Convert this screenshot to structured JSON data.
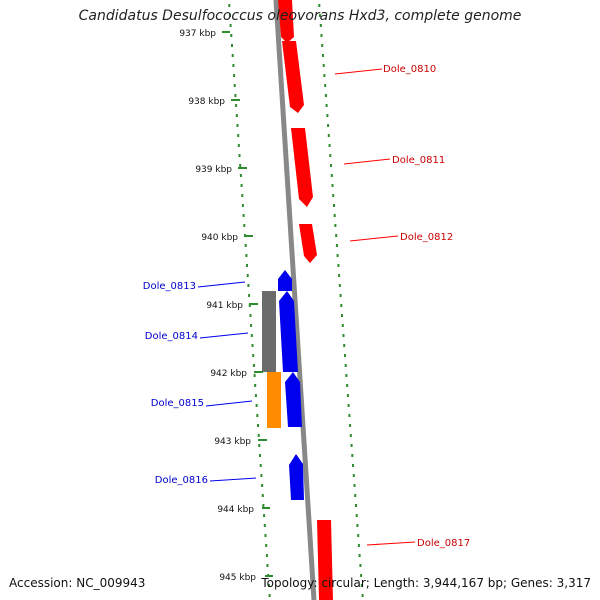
{
  "title": "Candidatus Desulfococcus oleovorans Hxd3, complete genome",
  "footer": {
    "accession": "Accession: NC_009943",
    "stats": "Topology: circular; Length: 3,944,167 bp; Genes: 3,317"
  },
  "colors": {
    "forward": "#ff0000",
    "reverse": "#0000ee",
    "gray_block": "#6b6b6b",
    "orange_block": "#ff8c00",
    "backbone": "#888888",
    "ticks": "#2e8b2e"
  },
  "scale": {
    "unit": "kbp",
    "ticks": [
      "937 kbp",
      "938 kbp",
      "939 kbp",
      "940 kbp",
      "941 kbp",
      "942 kbp",
      "943 kbp",
      "944 kbp",
      "945 kbp"
    ]
  },
  "genes": [
    {
      "label": "Dole_0810",
      "strand": "forward"
    },
    {
      "label": "Dole_0811",
      "strand": "forward"
    },
    {
      "label": "Dole_0812",
      "strand": "forward"
    },
    {
      "label": "Dole_0813",
      "strand": "reverse"
    },
    {
      "label": "Dole_0814",
      "strand": "reverse"
    },
    {
      "label": "Dole_0815",
      "strand": "reverse"
    },
    {
      "label": "Dole_0816",
      "strand": "reverse"
    },
    {
      "label": "Dole_0817",
      "strand": "forward"
    }
  ]
}
